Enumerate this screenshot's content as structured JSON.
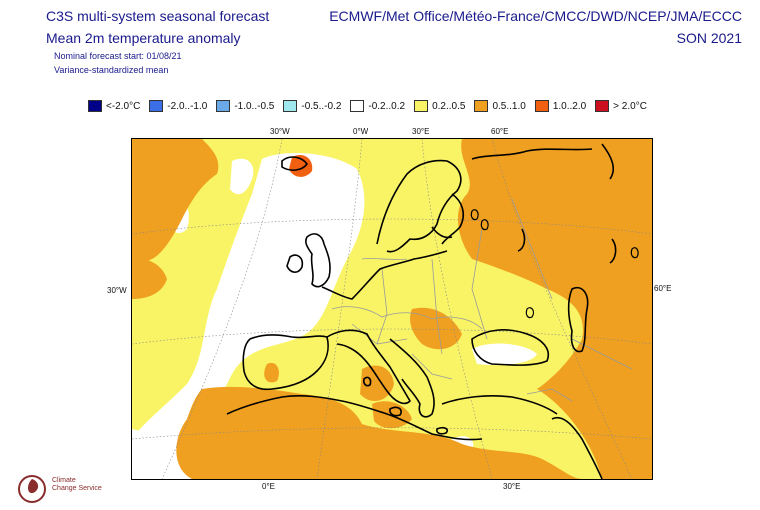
{
  "header": {
    "title_line1": "C3S multi-system seasonal forecast",
    "title_line2": "Mean 2m temperature anomaly",
    "subtitle_line1": "Nominal forecast start: 01/08/21",
    "subtitle_line2": "Variance-standardized mean",
    "providers": "ECMWF/Met Office/Météo-France/CMCC/DWD/NCEP/JMA/ECCC",
    "season": "SON 2021"
  },
  "legend": [
    {
      "label": "<-2.0°C",
      "color": "#00008b"
    },
    {
      "label": "-2.0..-1.0",
      "color": "#3a6fe8"
    },
    {
      "label": "-1.0..-0.5",
      "color": "#6aa8e8"
    },
    {
      "label": "-0.5..-0.2",
      "color": "#9ee8ee"
    },
    {
      "label": "-0.2..0.2",
      "color": "#ffffff"
    },
    {
      "label": "0.2..0.5",
      "color": "#f9f466"
    },
    {
      "label": "0.5..1.0",
      "color": "#f0a020"
    },
    {
      "label": "1.0..2.0",
      "color": "#f06010"
    },
    {
      "label": "> 2.0°C",
      "color": "#cc1020"
    }
  ],
  "graticule_labels": {
    "top": [
      "30°W",
      "0°W",
      "30°E",
      "60°E"
    ],
    "left": "30°W",
    "right": "60°E",
    "bottom": [
      "0°E",
      "30°E"
    ]
  },
  "logo": {
    "line1": "Climate",
    "line2": "Change Service"
  }
}
